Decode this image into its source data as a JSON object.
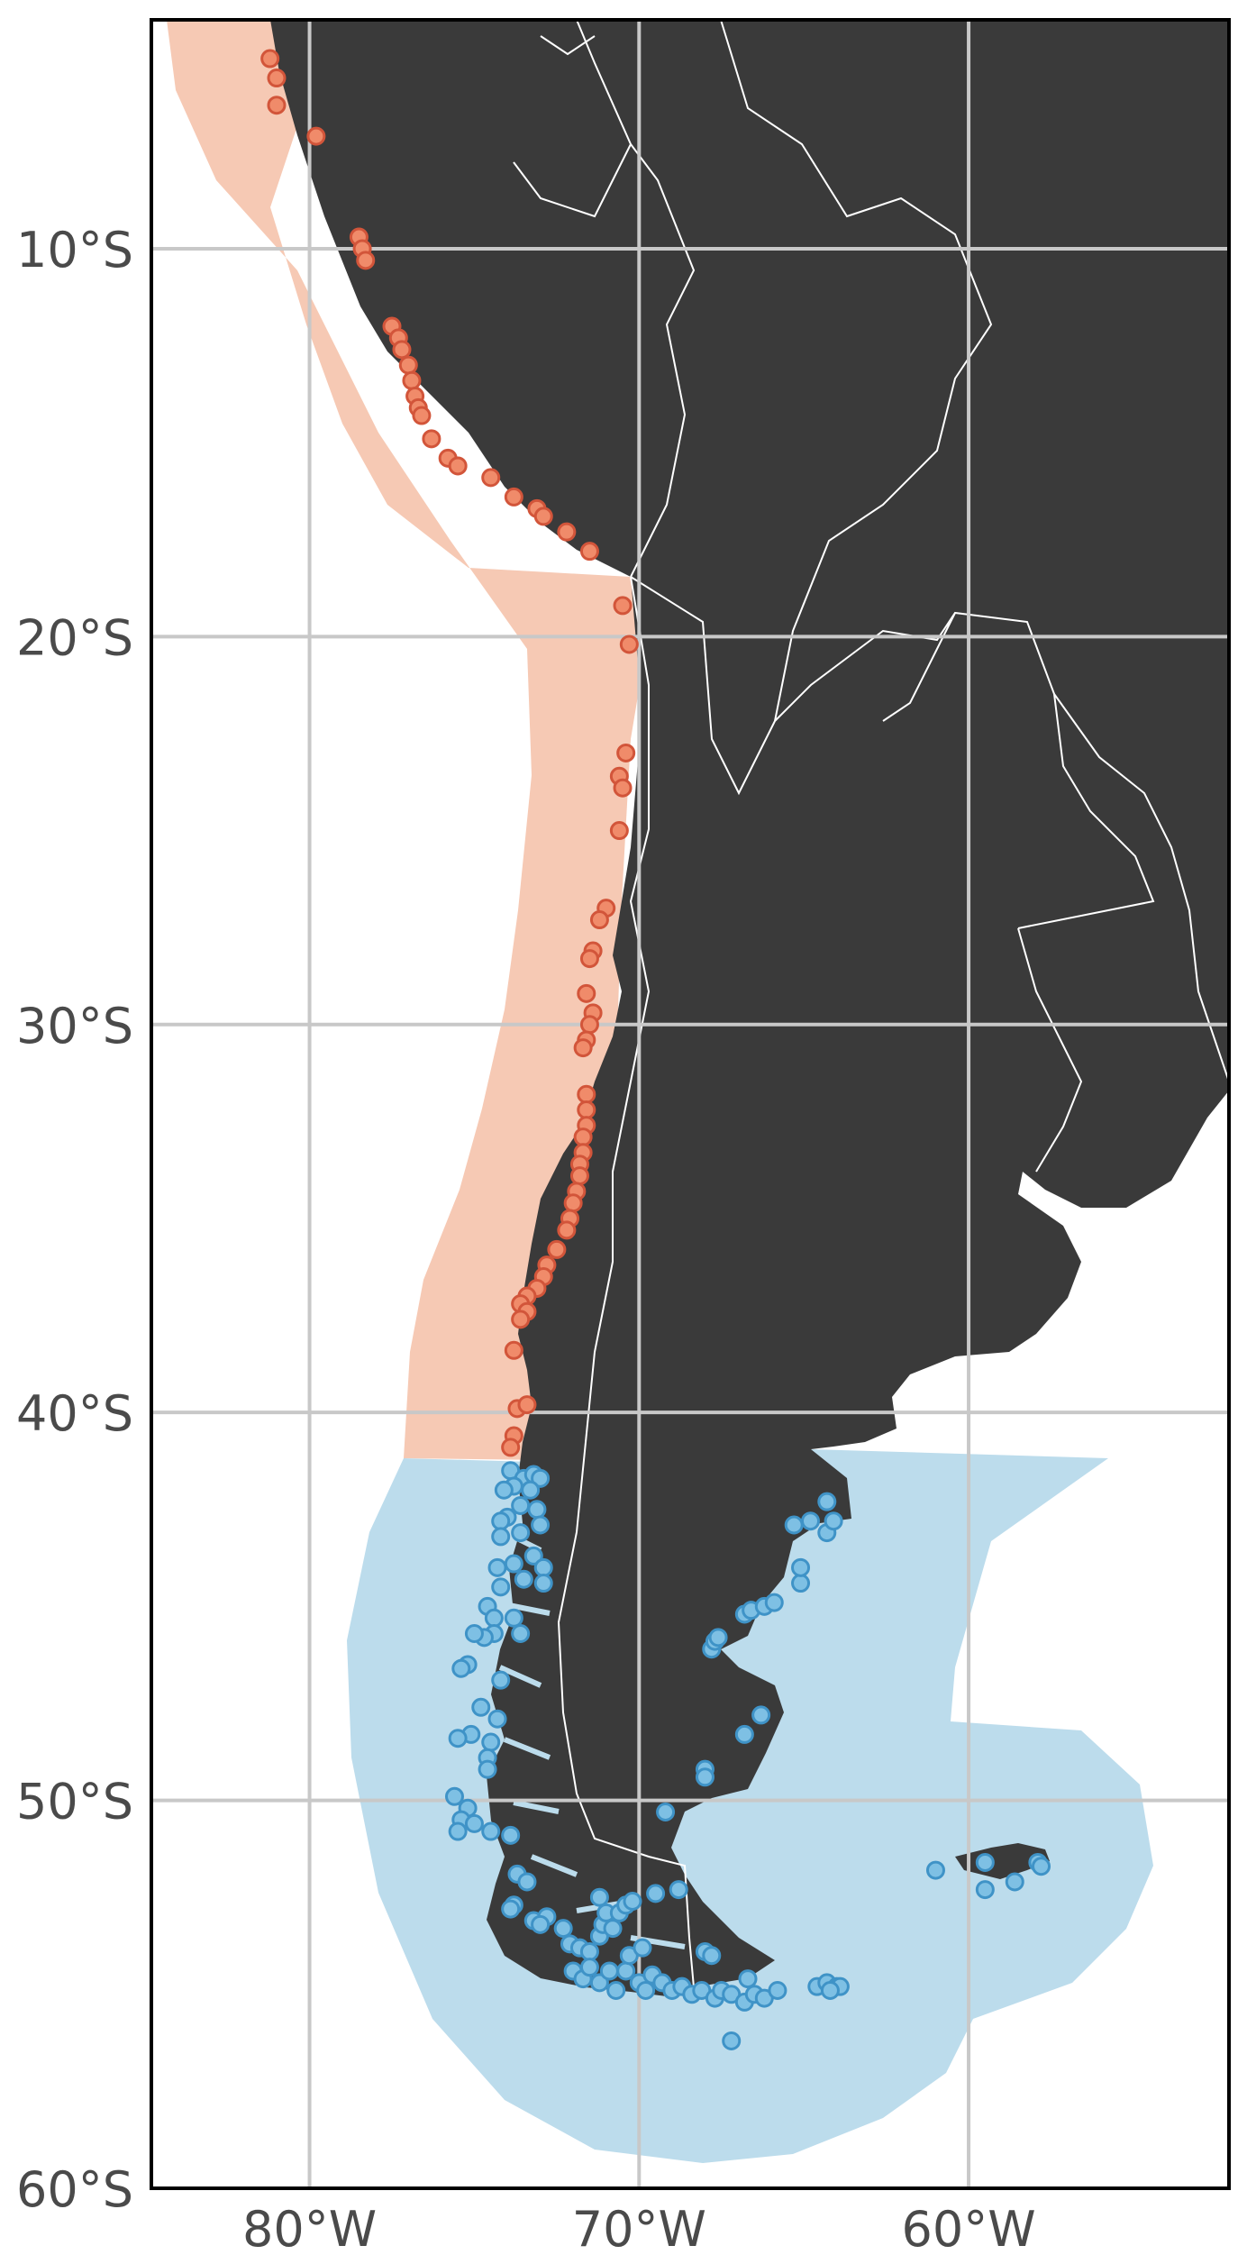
{
  "map": {
    "x_ticks": [
      {
        "lon": -80,
        "label": "80°W"
      },
      {
        "lon": -70,
        "label": "70°W"
      },
      {
        "lon": -60,
        "label": "60°W"
      }
    ],
    "y_ticks": [
      {
        "lat": -10,
        "label": "10°S"
      },
      {
        "lat": -20,
        "label": "20°S"
      },
      {
        "lat": -30,
        "label": "30°S"
      },
      {
        "lat": -40,
        "label": "40°S"
      },
      {
        "lat": -50,
        "label": "50°S"
      },
      {
        "lat": -60,
        "label": "60°S"
      }
    ],
    "extent": {
      "lon": [
        -84.8,
        -52.1
      ],
      "lat": [
        -60,
        -4.1
      ]
    },
    "grid": true,
    "colors": {
      "land": "#3a3a3a",
      "border": "#ffffff",
      "north_zone": "#f6c9b4",
      "south_zone": "#bcdcec",
      "north_point_fill": "#f08b6a",
      "north_point_stroke": "#d2553a",
      "south_point_fill": "#7ec0e4",
      "south_point_stroke": "#3f93c7"
    },
    "north_points": [
      [
        -81.2,
        -5.1
      ],
      [
        -81.0,
        -5.6
      ],
      [
        -81.0,
        -6.3
      ],
      [
        -79.8,
        -7.1
      ],
      [
        -78.5,
        -9.7
      ],
      [
        -78.4,
        -10.0
      ],
      [
        -78.3,
        -10.3
      ],
      [
        -77.5,
        -12.0
      ],
      [
        -77.3,
        -12.3
      ],
      [
        -77.2,
        -12.6
      ],
      [
        -77.0,
        -13.0
      ],
      [
        -76.9,
        -13.4
      ],
      [
        -76.8,
        -13.8
      ],
      [
        -76.7,
        -14.1
      ],
      [
        -76.6,
        -14.3
      ],
      [
        -76.3,
        -14.9
      ],
      [
        -75.8,
        -15.4
      ],
      [
        -75.5,
        -15.6
      ],
      [
        -74.5,
        -15.9
      ],
      [
        -73.8,
        -16.4
      ],
      [
        -73.1,
        -16.7
      ],
      [
        -72.9,
        -16.9
      ],
      [
        -72.2,
        -17.3
      ],
      [
        -71.5,
        -17.8
      ],
      [
        -70.5,
        -19.2
      ],
      [
        -70.3,
        -20.2
      ],
      [
        -70.4,
        -23.0
      ],
      [
        -70.6,
        -23.6
      ],
      [
        -70.5,
        -23.9
      ],
      [
        -70.6,
        -25.0
      ],
      [
        -71.0,
        -27.0
      ],
      [
        -71.2,
        -27.3
      ],
      [
        -71.4,
        -28.1
      ],
      [
        -71.5,
        -28.3
      ],
      [
        -71.6,
        -29.2
      ],
      [
        -71.4,
        -29.7
      ],
      [
        -71.5,
        -30.0
      ],
      [
        -71.6,
        -30.4
      ],
      [
        -71.7,
        -30.6
      ],
      [
        -71.6,
        -31.8
      ],
      [
        -71.6,
        -32.2
      ],
      [
        -71.6,
        -32.6
      ],
      [
        -71.7,
        -32.9
      ],
      [
        -71.7,
        -33.3
      ],
      [
        -71.8,
        -33.6
      ],
      [
        -71.8,
        -33.9
      ],
      [
        -71.9,
        -34.3
      ],
      [
        -72.0,
        -34.6
      ],
      [
        -72.1,
        -35.0
      ],
      [
        -72.2,
        -35.3
      ],
      [
        -72.5,
        -35.8
      ],
      [
        -72.8,
        -36.2
      ],
      [
        -72.9,
        -36.5
      ],
      [
        -73.1,
        -36.8
      ],
      [
        -73.4,
        -37.0
      ],
      [
        -73.6,
        -37.2
      ],
      [
        -73.4,
        -37.4
      ],
      [
        -73.6,
        -37.6
      ],
      [
        -73.8,
        -38.4
      ],
      [
        -73.7,
        -39.9
      ],
      [
        -73.4,
        -39.8
      ],
      [
        -73.8,
        -40.6
      ],
      [
        -73.9,
        -40.9
      ]
    ],
    "south_points": [
      [
        -73.9,
        -41.5
      ],
      [
        -73.5,
        -41.7
      ],
      [
        -73.2,
        -41.6
      ],
      [
        -73.0,
        -41.7
      ],
      [
        -73.3,
        -42.0
      ],
      [
        -73.8,
        -41.9
      ],
      [
        -74.1,
        -42.0
      ],
      [
        -73.6,
        -42.4
      ],
      [
        -74.0,
        -42.7
      ],
      [
        -73.1,
        -42.5
      ],
      [
        -73.0,
        -42.9
      ],
      [
        -74.2,
        -42.8
      ],
      [
        -74.2,
        -43.2
      ],
      [
        -73.6,
        -43.1
      ],
      [
        -73.8,
        -43.9
      ],
      [
        -74.3,
        -44.0
      ],
      [
        -73.2,
        -43.7
      ],
      [
        -72.9,
        -44.0
      ],
      [
        -72.9,
        -44.4
      ],
      [
        -73.5,
        -44.3
      ],
      [
        -74.2,
        -44.5
      ],
      [
        -74.6,
        -45.0
      ],
      [
        -74.4,
        -45.3
      ],
      [
        -73.8,
        -45.3
      ],
      [
        -74.4,
        -45.7
      ],
      [
        -74.7,
        -45.8
      ],
      [
        -75.0,
        -45.7
      ],
      [
        -73.6,
        -45.7
      ],
      [
        -75.2,
        -46.5
      ],
      [
        -75.4,
        -46.6
      ],
      [
        -74.2,
        -46.9
      ],
      [
        -74.8,
        -47.6
      ],
      [
        -74.3,
        -47.9
      ],
      [
        -75.1,
        -48.3
      ],
      [
        -74.5,
        -48.5
      ],
      [
        -74.6,
        -48.9
      ],
      [
        -74.6,
        -49.2
      ],
      [
        -75.5,
        -48.4
      ],
      [
        -75.6,
        -49.9
      ],
      [
        -75.2,
        -50.2
      ],
      [
        -75.4,
        -50.5
      ],
      [
        -75.0,
        -50.6
      ],
      [
        -75.5,
        -50.8
      ],
      [
        -74.5,
        -50.8
      ],
      [
        -73.9,
        -50.9
      ],
      [
        -73.7,
        -51.9
      ],
      [
        -73.4,
        -52.1
      ],
      [
        -73.8,
        -52.7
      ],
      [
        -73.9,
        -52.8
      ],
      [
        -73.2,
        -53.1
      ],
      [
        -72.8,
        -53.0
      ],
      [
        -73.0,
        -53.2
      ],
      [
        -72.3,
        -53.3
      ],
      [
        -72.1,
        -53.7
      ],
      [
        -71.8,
        -53.8
      ],
      [
        -71.5,
        -53.9
      ],
      [
        -71.2,
        -53.5
      ],
      [
        -71.1,
        -53.2
      ],
      [
        -71.0,
        -52.9
      ],
      [
        -71.2,
        -52.5
      ],
      [
        -70.8,
        -53.3
      ],
      [
        -70.6,
        -52.9
      ],
      [
        -70.4,
        -52.7
      ],
      [
        -70.2,
        -52.6
      ],
      [
        -69.5,
        -52.4
      ],
      [
        -68.8,
        -52.3
      ],
      [
        -72.0,
        -54.4
      ],
      [
        -71.7,
        -54.6
      ],
      [
        -71.5,
        -54.3
      ],
      [
        -71.2,
        -54.7
      ],
      [
        -70.9,
        -54.4
      ],
      [
        -70.7,
        -54.9
      ],
      [
        -70.4,
        -54.4
      ],
      [
        -70.0,
        -54.7
      ],
      [
        -69.8,
        -54.9
      ],
      [
        -69.6,
        -54.5
      ],
      [
        -69.3,
        -54.7
      ],
      [
        -69.0,
        -54.9
      ],
      [
        -68.7,
        -54.8
      ],
      [
        -68.4,
        -55.0
      ],
      [
        -68.1,
        -54.9
      ],
      [
        -67.7,
        -55.1
      ],
      [
        -67.5,
        -54.9
      ],
      [
        -67.2,
        -55.0
      ],
      [
        -66.8,
        -55.2
      ],
      [
        -66.5,
        -55.0
      ],
      [
        -66.2,
        -55.1
      ],
      [
        -66.7,
        -54.6
      ],
      [
        -65.8,
        -54.9
      ],
      [
        -70.3,
        -54.0
      ],
      [
        -69.9,
        -53.8
      ],
      [
        -68.0,
        -53.9
      ],
      [
        -67.8,
        -54.0
      ],
      [
        -67.2,
        -56.2
      ],
      [
        -69.2,
        -50.3
      ],
      [
        -68.0,
        -49.2
      ],
      [
        -68.0,
        -49.4
      ],
      [
        -66.8,
        -48.3
      ],
      [
        -66.3,
        -47.8
      ],
      [
        -67.8,
        -46.1
      ],
      [
        -67.7,
        -45.9
      ],
      [
        -67.6,
        -45.8
      ],
      [
        -66.8,
        -45.2
      ],
      [
        -66.6,
        -45.1
      ],
      [
        -66.2,
        -45.0
      ],
      [
        -65.9,
        -44.9
      ],
      [
        -65.1,
        -44.4
      ],
      [
        -65.1,
        -44.0
      ],
      [
        -64.8,
        -42.8
      ],
      [
        -64.3,
        -42.3
      ],
      [
        -64.3,
        -43.1
      ],
      [
        -64.1,
        -42.8
      ],
      [
        -65.3,
        -42.9
      ],
      [
        -61.0,
        -51.8
      ],
      [
        -59.5,
        -51.6
      ],
      [
        -59.5,
        -52.3
      ],
      [
        -58.6,
        -52.1
      ],
      [
        -57.9,
        -51.6
      ],
      [
        -57.8,
        -51.7
      ],
      [
        -64.6,
        -54.8
      ],
      [
        -64.3,
        -54.7
      ],
      [
        -64.0,
        -54.8
      ],
      [
        -63.9,
        -54.8
      ],
      [
        -64.2,
        -54.9
      ]
    ]
  }
}
